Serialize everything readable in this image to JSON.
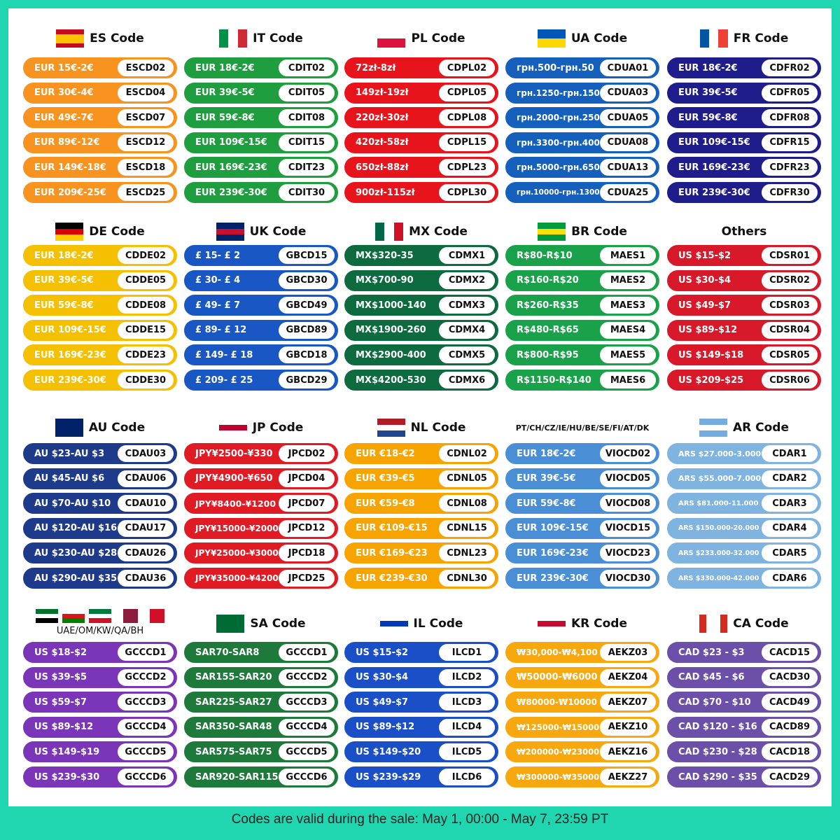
{
  "groups": [
    {
      "title": "ES Code",
      "color": "#f7931e",
      "codes": [
        {
          "discount": "EUR 15€-2€",
          "code": "ESCD02"
        },
        {
          "discount": "EUR 30€-4€",
          "code": "ESCD04"
        },
        {
          "discount": "EUR 49€-7€",
          "code": "ESCD07"
        },
        {
          "discount": "EUR 89€-12€",
          "code": "ESCD12"
        },
        {
          "discount": "EUR 149€-18€",
          "code": "ESCD18"
        },
        {
          "discount": "EUR 209€-25€",
          "code": "ESCD25"
        }
      ]
    },
    {
      "title": "IT Code",
      "color": "#1e9e3e",
      "codes": [
        {
          "discount": "EUR 18€-2€",
          "code": "CDIT02"
        },
        {
          "discount": "EUR 39€-5€",
          "code": "CDIT05"
        },
        {
          "discount": "EUR 59€-8€",
          "code": "CDIT08"
        },
        {
          "discount": "EUR 109€-15€",
          "code": "CDIT15"
        },
        {
          "discount": "EUR 169€-23€",
          "code": "CDIT23"
        },
        {
          "discount": "EUR 239€-30€",
          "code": "CDIT30"
        }
      ]
    },
    {
      "title": "PL Code",
      "color": "#e8141c",
      "codes": [
        {
          "discount": "72zł-8zł",
          "code": "CDPL02"
        },
        {
          "discount": "149zł-19zł",
          "code": "CDPL05"
        },
        {
          "discount": "220zł-30zł",
          "code": "CDPL08"
        },
        {
          "discount": "420zł-58zł",
          "code": "CDPL15"
        },
        {
          "discount": "650zł-88zł",
          "code": "CDPL23"
        },
        {
          "discount": "900zł-115zł",
          "code": "CDPL30"
        }
      ]
    },
    {
      "title": "UA Code",
      "color": "#1560bd",
      "codes": [
        {
          "discount": "грн.500-грн.50",
          "code": "CDUA01"
        },
        {
          "discount": "грн.1250-грн.150",
          "code": "CDUA03"
        },
        {
          "discount": "грн.2000-грн.250",
          "code": "CDUA05"
        },
        {
          "discount": "грн.3300-грн.400",
          "code": "CDUA08"
        },
        {
          "discount": "грн.5000-грн.650",
          "code": "CDUA13"
        },
        {
          "discount": "грн.10000-грн.1300",
          "code": "CDUA25"
        }
      ]
    },
    {
      "title": "FR Code",
      "color": "#1f1d8c",
      "codes": [
        {
          "discount": "EUR 18€-2€",
          "code": "CDFR02"
        },
        {
          "discount": "EUR 39€-5€",
          "code": "CDFR05"
        },
        {
          "discount": "EUR 59€-8€",
          "code": "CDFR08"
        },
        {
          "discount": "EUR 109€-15€",
          "code": "CDFR15"
        },
        {
          "discount": "EUR 169€-23€",
          "code": "CDFR23"
        },
        {
          "discount": "EUR 239€-30€",
          "code": "CDFR30"
        }
      ]
    },
    {
      "title": "DE Code",
      "color": "#f5c000",
      "codes": [
        {
          "discount": "EUR 18€-2€",
          "code": "CDDE02"
        },
        {
          "discount": "EUR 39€-5€",
          "code": "CDDE05"
        },
        {
          "discount": "EUR 59€-8€",
          "code": "CDDE08"
        },
        {
          "discount": "EUR 109€-15€",
          "code": "CDDE15"
        },
        {
          "discount": "EUR 169€-23€",
          "code": "CDDE23"
        },
        {
          "discount": "EUR 239€-30€",
          "code": "CDDE30"
        }
      ]
    },
    {
      "title": "UK Code",
      "color": "#1857c4",
      "codes": [
        {
          "discount": "£ 15- £ 2",
          "code": "GBCD15"
        },
        {
          "discount": "£ 30- £ 4",
          "code": "GBCD30"
        },
        {
          "discount": "£ 49- £ 7",
          "code": "GBCD49"
        },
        {
          "discount": "£ 89- £ 12",
          "code": "GBCD89"
        },
        {
          "discount": "£ 149- £ 18",
          "code": "GBCD18"
        },
        {
          "discount": "£ 209- £ 25",
          "code": "GBCD29"
        }
      ]
    },
    {
      "title": "MX Code",
      "color": "#0d6b3f",
      "codes": [
        {
          "discount": "MX$320-35",
          "code": "CDMX1"
        },
        {
          "discount": "MX$700-90",
          "code": "CDMX2"
        },
        {
          "discount": "MX$1000-140",
          "code": "CDMX3"
        },
        {
          "discount": "MX$1900-260",
          "code": "CDMX4"
        },
        {
          "discount": "MX$2900-400",
          "code": "CDMX5"
        },
        {
          "discount": "MX$4200-530",
          "code": "CDMX6"
        }
      ]
    },
    {
      "title": "BR Code",
      "color": "#1aa24a",
      "codes": [
        {
          "discount": "R$80-R$10",
          "code": "MAES1"
        },
        {
          "discount": "R$160-R$20",
          "code": "MAES2"
        },
        {
          "discount": "R$260-R$35",
          "code": "MAES3"
        },
        {
          "discount": "R$480-R$65",
          "code": "MAES4"
        },
        {
          "discount": "R$800-R$95",
          "code": "MAES5"
        },
        {
          "discount": "R$1150-R$140",
          "code": "MAES6"
        }
      ]
    },
    {
      "title": "Others",
      "color": "#d7192a",
      "codes": [
        {
          "discount": "US $15-$2",
          "code": "CDSR01"
        },
        {
          "discount": "US $30-$4",
          "code": "CDSR02"
        },
        {
          "discount": "US $49-$7",
          "code": "CDSR03"
        },
        {
          "discount": "US $89-$12",
          "code": "CDSR04"
        },
        {
          "discount": "US $149-$18",
          "code": "CDSR05"
        },
        {
          "discount": "US $209-$25",
          "code": "CDSR06"
        }
      ]
    },
    {
      "title": "AU Code",
      "color": "#1e3a8a",
      "codes": [
        {
          "discount": "AU $23-AU $3",
          "code": "CDAU03"
        },
        {
          "discount": "AU $45-AU $6",
          "code": "CDAU06"
        },
        {
          "discount": "AU $70-AU $10",
          "code": "CDAU10"
        },
        {
          "discount": "AU $120-AU $16",
          "code": "CDAU17"
        },
        {
          "discount": "AU $230-AU $28",
          "code": "CDAU26"
        },
        {
          "discount": "AU $290-AU $35",
          "code": "CDAU36"
        }
      ]
    },
    {
      "title": "JP Code",
      "color": "#e01b24",
      "codes": [
        {
          "discount": "JPY¥2500-¥330",
          "code": "JPCD02"
        },
        {
          "discount": "JPY¥4900-¥650",
          "code": "JPCD04"
        },
        {
          "discount": "JPY¥8400-¥1200",
          "code": "JPCD07"
        },
        {
          "discount": "JPY¥15000-¥2000",
          "code": "JPCD12"
        },
        {
          "discount": "JPY¥25000-¥3000",
          "code": "JPCD18"
        },
        {
          "discount": "JPY¥35000-¥4200",
          "code": "JPCD25"
        }
      ]
    },
    {
      "title": "NL Code",
      "color": "#f7a400",
      "codes": [
        {
          "discount": "EUR €18-€2",
          "code": "CDNL02"
        },
        {
          "discount": "EUR €39-€5",
          "code": "CDNL05"
        },
        {
          "discount": "EUR €59-€8",
          "code": "CDNL08"
        },
        {
          "discount": "EUR €109-€15",
          "code": "CDNL15"
        },
        {
          "discount": "EUR €169-€23",
          "code": "CDNL23"
        },
        {
          "discount": "EUR €239-€30",
          "code": "CDNL30"
        }
      ]
    },
    {
      "title": "PT/CH/CZ/IE/HU/BE/SE/FI/AT/DK",
      "color": "#4a8fd6",
      "codes": [
        {
          "discount": "EUR 18€-2€",
          "code": "VIOCD02"
        },
        {
          "discount": "EUR 39€-5€",
          "code": "VIOCD05"
        },
        {
          "discount": "EUR 59€-8€",
          "code": "VIOCD08"
        },
        {
          "discount": "EUR 109€-15€",
          "code": "VIOCD15"
        },
        {
          "discount": "EUR 169€-23€",
          "code": "VIOCD23"
        },
        {
          "discount": "EUR 239€-30€",
          "code": "VIOCD30"
        }
      ]
    },
    {
      "title": "AR Code",
      "color": "#7fb3e0",
      "codes": [
        {
          "discount": "ARS $27.000-3.000",
          "code": "CDAR1"
        },
        {
          "discount": "ARS $55.000-7.000",
          "code": "CDAR2"
        },
        {
          "discount": "ARS $81.000-11.000",
          "code": "CDAR3"
        },
        {
          "discount": "ARS $150.000-20.000",
          "code": "CDAR4"
        },
        {
          "discount": "ARS $233.000-32.000",
          "code": "CDAR5"
        },
        {
          "discount": "ARS $330.000-42.000",
          "code": "CDAR6"
        }
      ]
    },
    {
      "title": "UAE/OM/KW/QA/BH",
      "color": "#7b35b8",
      "codes": [
        {
          "discount": "US $18-$2",
          "code": "GCCCD1"
        },
        {
          "discount": "US $39-$5",
          "code": "GCCCD2"
        },
        {
          "discount": "US $59-$7",
          "code": "GCCCD3"
        },
        {
          "discount": "US $89-$12",
          "code": "GCCCD4"
        },
        {
          "discount": "US $149-$19",
          "code": "GCCCD5"
        },
        {
          "discount": "US $239-$30",
          "code": "GCCCD6"
        }
      ]
    },
    {
      "title": "SA Code",
      "color": "#1d7a3a",
      "codes": [
        {
          "discount": "SAR70-SAR8",
          "code": "GCCCD1"
        },
        {
          "discount": "SAR155-SAR20",
          "code": "GCCCD2"
        },
        {
          "discount": "SAR225-SAR27",
          "code": "GCCCD3"
        },
        {
          "discount": "SAR350-SAR48",
          "code": "GCCCD4"
        },
        {
          "discount": "SAR575-SAR75",
          "code": "GCCCD5"
        },
        {
          "discount": "SAR920-SAR115",
          "code": "GCCCD6"
        }
      ]
    },
    {
      "title": "IL Code",
      "color": "#1a4fc7",
      "codes": [
        {
          "discount": "US $15-$2",
          "code": "ILCD1"
        },
        {
          "discount": "US $30-$4",
          "code": "ILCD2"
        },
        {
          "discount": "US $49-$7",
          "code": "ILCD3"
        },
        {
          "discount": "US $89-$12",
          "code": "ILCD4"
        },
        {
          "discount": "US $149-$20",
          "code": "ILCD5"
        },
        {
          "discount": "US $239-$29",
          "code": "ILCD6"
        }
      ]
    },
    {
      "title": "KR Code",
      "color": "#f6a80e",
      "codes": [
        {
          "discount": "₩30,000-₩4,100",
          "code": "AEKZ03"
        },
        {
          "discount": "₩50000-₩6000",
          "code": "AEKZ04"
        },
        {
          "discount": "₩80000-₩10000",
          "code": "AEKZ07"
        },
        {
          "discount": "₩125000-₩15000",
          "code": "AEKZ10"
        },
        {
          "discount": "₩200000-₩23000",
          "code": "AEKZ16"
        },
        {
          "discount": "₩300000-₩35000",
          "code": "AEKZ27"
        }
      ]
    },
    {
      "title": "CA Code",
      "color": "#6b4fa8",
      "codes": [
        {
          "discount": "CAD $23 - $3",
          "code": "CACD15"
        },
        {
          "discount": "CAD $45 - $6",
          "code": "CACD30"
        },
        {
          "discount": "CAD $70 - $10",
          "code": "CACD49"
        },
        {
          "discount": "CAD $120 - $16",
          "code": "CACD89"
        },
        {
          "discount": "CAD $230 - $28",
          "code": "CACD18"
        },
        {
          "discount": "CAD $290 - $35",
          "code": "CACD29"
        }
      ]
    }
  ],
  "footer": "Codes are valid during the sale: May 1, 00:00 - May 7, 23:59 PT"
}
